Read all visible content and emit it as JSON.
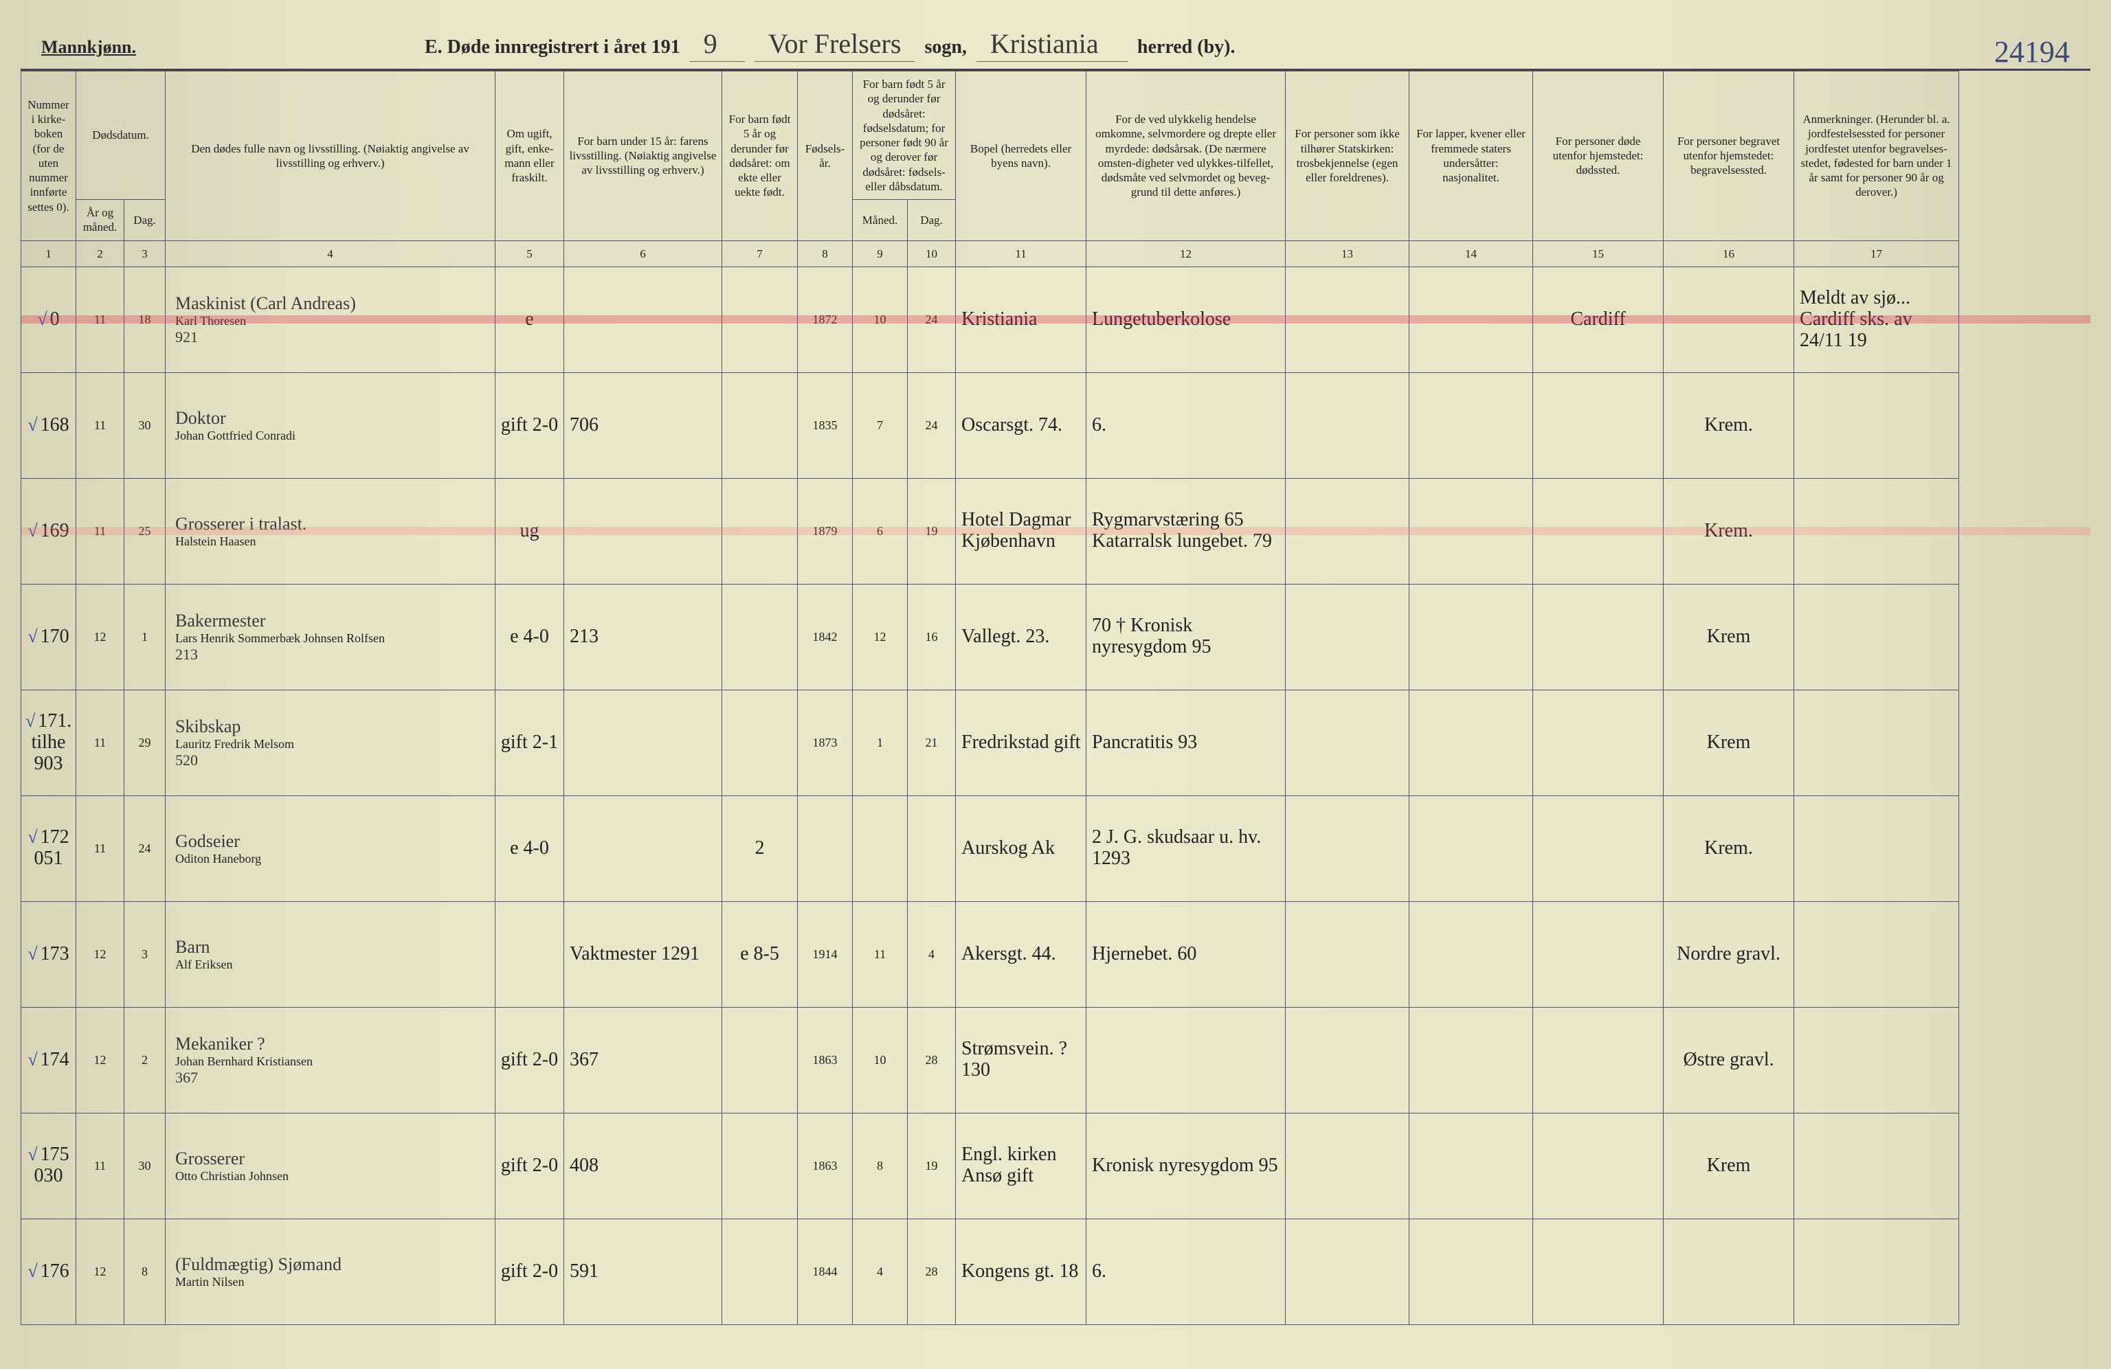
{
  "header": {
    "gender": "Mannkjønn.",
    "title_prefix": "E. Døde innregistrert i året 191",
    "year_suffix": "9",
    "parish_word": "sogn,",
    "district_word": "herred (by).",
    "parish_value": "Vor Frelsers",
    "district_value": "Kristiania",
    "page_number": "24194"
  },
  "columns": {
    "c1": "Nummer i kirke-boken (for de uten nummer innførte settes 0).",
    "c2a": "Dødsdatum.",
    "c2": "År og måned.",
    "c3": "Dag.",
    "c4": "Den dødes fulle navn og livsstilling. (Nøiaktig angivelse av livsstilling og erhverv.)",
    "c5": "Om ugift, gift, enke-mann eller fraskilt.",
    "c6": "For barn under 15 år: farens livsstilling. (Nøiaktig angivelse av livsstilling og erhverv.)",
    "c7": "For barn født 5 år og derunder før dødsåret: om ekte eller uekte født.",
    "c8": "Fødsels-år.",
    "c9_10_top": "For barn født 5 år og derunder før dødsåret: fødselsdatum; for personer født 90 år og derover før dødsåret: fødsels- eller dåbsdatum.",
    "c9": "Måned.",
    "c10": "Dag.",
    "c11": "Bopel (herredets eller byens navn).",
    "c12": "For de ved ulykkelig hendelse omkomne, selvmordere og drepte eller myrdede: dødsårsak. (De nærmere omsten-digheter ved ulykkes-tilfellet, dødsmåte ved selvmordet og beveg-grund til dette anføres.)",
    "c13": "For personer som ikke tilhører Statskirken: trosbekjennelse (egen eller foreldrenes).",
    "c14": "For lapper, kvener eller fremmede staters undersåtter: nasjonalitet.",
    "c15": "For personer døde utenfor hjemstedet: dødssted.",
    "c16": "For personer begravet utenfor hjemstedet: begravelsessted.",
    "c17": "Anmerkninger. (Herunder bl. a. jordfestelsessted for personer jordfestet utenfor begravelses-stedet, fødested for barn under 1 år samt for personer 90 år og derover.)"
  },
  "column_numbers": [
    "1",
    "2",
    "3",
    "4",
    "5",
    "6",
    "7",
    "8",
    "9",
    "10",
    "11",
    "12",
    "13",
    "14",
    "15",
    "16",
    "17"
  ],
  "rows": [
    {
      "num": "0",
      "ym": "11",
      "day": "18",
      "occupation": "Maskinist  (Carl Andreas)",
      "name": "Karl Thoresen",
      "name_sub": "921",
      "marital": "e",
      "father": "",
      "legit": "",
      "birth_year": "1872",
      "bm": "10",
      "bd": "24",
      "residence": "Kristiania",
      "cause": "Lungetuberkolose",
      "c15": "Cardiff",
      "c16": "",
      "c17": "Meldt av sjø... Cardiff sks. av 24/11 19",
      "highlight": "red"
    },
    {
      "num": "168",
      "ym": "11",
      "day": "30",
      "occupation": "Doktor",
      "name": "Johan Gottfried Conradi",
      "name_sub": "",
      "marital": "gift 2-0",
      "father": "706",
      "legit": "",
      "birth_year": "1835",
      "bm": "7",
      "bd": "24",
      "residence": "Oscarsgt. 74.",
      "cause": "6.",
      "c15": "",
      "c16": "Krem.",
      "c17": ""
    },
    {
      "num": "169",
      "ym": "11",
      "day": "25",
      "occupation": "Grosserer i tralast.",
      "name": "Halstein Haasen",
      "name_sub": "",
      "marital": "ug",
      "father": "",
      "legit": "",
      "birth_year": "1879",
      "bm": "6",
      "bd": "19",
      "residence": "Hotel Dagmar Kjøbenhavn",
      "cause": "Rygmarvstæring 65  Katarralsk lungebet. 79",
      "c15": "",
      "c16": "Krem.",
      "c17": "",
      "highlight": "red-soft"
    },
    {
      "num": "170",
      "ym": "12",
      "day": "1",
      "occupation": "Bakermester",
      "name": "Lars Henrik Sommerbæk Johnsen Rolfsen",
      "name_sub": "213",
      "marital": "e 4-0",
      "father": "213",
      "legit": "",
      "birth_year": "1842",
      "bm": "12",
      "bd": "16",
      "residence": "Vallegt. 23.",
      "cause": "70 † Kronisk nyresygdom 95",
      "c15": "",
      "c16": "Krem",
      "c17": ""
    },
    {
      "num": "171.  tilhe 903",
      "ym": "11",
      "day": "29",
      "occupation": "Skibskap",
      "name": "Lauritz Fredrik Melsom",
      "name_sub": "520",
      "marital": "gift 2-1",
      "father": "",
      "legit": "",
      "birth_year": "1873",
      "bm": "1",
      "bd": "21",
      "residence": "Fredrikstad gift",
      "cause": "Pancratitis 93",
      "c15": "",
      "c16": "Krem",
      "c17": ""
    },
    {
      "num": "172  051",
      "ym": "11",
      "day": "24",
      "occupation": "Godseier",
      "name": "Oditon Haneborg",
      "name_sub": "",
      "marital": "e 4-0",
      "father": "",
      "legit": "2",
      "birth_year": "",
      "bm": "",
      "bd": "",
      "residence": "Aurskog Ak",
      "cause": "2 J. G. skudsaar  u. hv. 1293",
      "c15": "",
      "c16": "Krem.",
      "c17": ""
    },
    {
      "num": "173",
      "ym": "12",
      "day": "3",
      "occupation": "Barn",
      "name": "Alf Eriksen",
      "name_sub": "",
      "marital": "",
      "father": "Vaktmester  1291",
      "legit": "e 8-5",
      "birth_year": "1914",
      "bm": "11",
      "bd": "4",
      "residence": "Akersgt. 44.",
      "cause": "Hjernebet. 60",
      "c15": "",
      "c16": "Nordre gravl.",
      "c17": ""
    },
    {
      "num": "174",
      "ym": "12",
      "day": "2",
      "occupation": "Mekaniker ?",
      "name": "Johan Bernhard Kristiansen",
      "name_sub": "367",
      "marital": "gift 2-0",
      "father": "367",
      "legit": "",
      "birth_year": "1863",
      "bm": "10",
      "bd": "28",
      "residence": "Strømsvein. ? 130",
      "cause": "",
      "c15": "",
      "c16": "Østre gravl.",
      "c17": ""
    },
    {
      "num": "175  030",
      "ym": "11",
      "day": "30",
      "occupation": "Grosserer",
      "name": "Otto Christian Johnsen",
      "name_sub": "",
      "marital": "gift 2-0",
      "father": "408",
      "legit": "",
      "birth_year": "1863",
      "bm": "8",
      "bd": "19",
      "residence": "Engl. kirken Ansø  gift",
      "cause": "Kronisk nyresygdom 95",
      "c15": "",
      "c16": "Krem",
      "c17": ""
    },
    {
      "num": "176",
      "ym": "12",
      "day": "8",
      "occupation": "(Fuldmægtig) Sjømand",
      "name": "Martin Nilsen",
      "name_sub": "",
      "marital": "gift 2-0",
      "father": "591",
      "legit": "",
      "birth_year": "1844",
      "bm": "4",
      "bd": "28",
      "residence": "Kongens gt. 18",
      "cause": "6.",
      "c15": "",
      "c16": "",
      "c17": ""
    }
  ],
  "styling": {
    "page_bg": "#e8e4c8",
    "rule_color": "#444444",
    "border_color": "#555555",
    "header_text_color": "#222222",
    "script_color": "#2a2a3a",
    "blue_pencil": "#2a4aa0",
    "red_highlight": "#dc3c5a",
    "script_font": "Brush Script MT"
  }
}
